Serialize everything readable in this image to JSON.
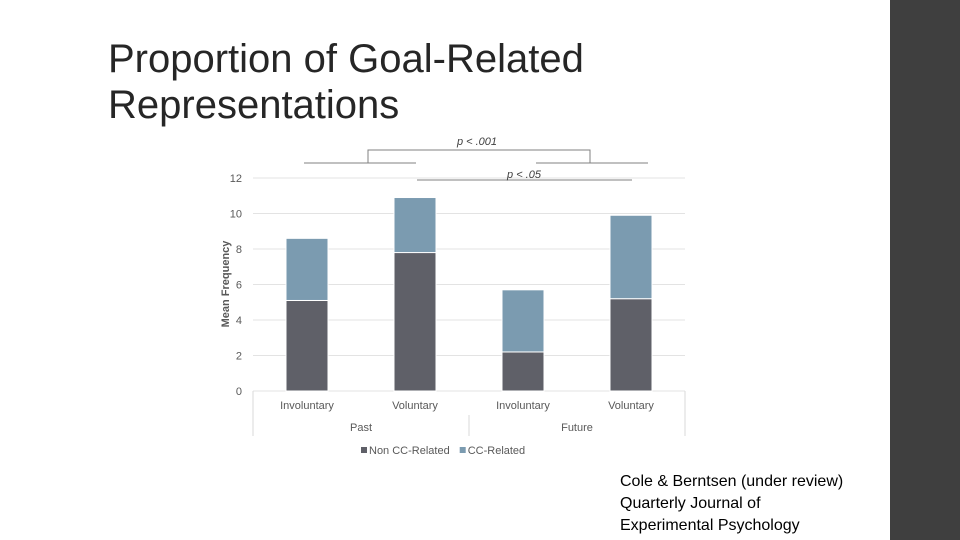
{
  "slide": {
    "title_line1": "Proportion of Goal-Related",
    "title_line2": "Representations",
    "citation_line1": "Cole & Berntsen (under review)",
    "citation_line2": "Quarterly Journal of",
    "citation_line3": "Experimental Psychology"
  },
  "colors": {
    "non_cc": "#5f6068",
    "cc": "#7b9bb0",
    "grid": "#e3e3e3",
    "sidebar": "#3f3f3f"
  },
  "chart_data": {
    "type": "bar",
    "stacked": true,
    "categories": [
      "Involuntary",
      "Voluntary",
      "Involuntary",
      "Voluntary"
    ],
    "groups": [
      {
        "label": "Past",
        "categories": [
          0,
          1
        ]
      },
      {
        "label": "Future",
        "categories": [
          2,
          3
        ]
      }
    ],
    "series": [
      {
        "name": "Non CC-Related",
        "color": "#5f6068",
        "values": [
          5.1,
          7.8,
          2.2,
          5.2
        ]
      },
      {
        "name": "CC-Related",
        "color": "#7b9bb0",
        "values": [
          3.5,
          3.1,
          3.5,
          4.7
        ]
      }
    ],
    "ylabel": "Mean Frequency",
    "ylim": [
      0,
      12
    ],
    "yticks": [
      0,
      2,
      4,
      6,
      8,
      10,
      12
    ],
    "grid": true,
    "legend": "bottom",
    "annotations": [
      {
        "text": "p < .001",
        "compares": "Past vs Future"
      },
      {
        "text": "p < .05",
        "compares": "Involuntary vs Voluntary"
      }
    ]
  }
}
